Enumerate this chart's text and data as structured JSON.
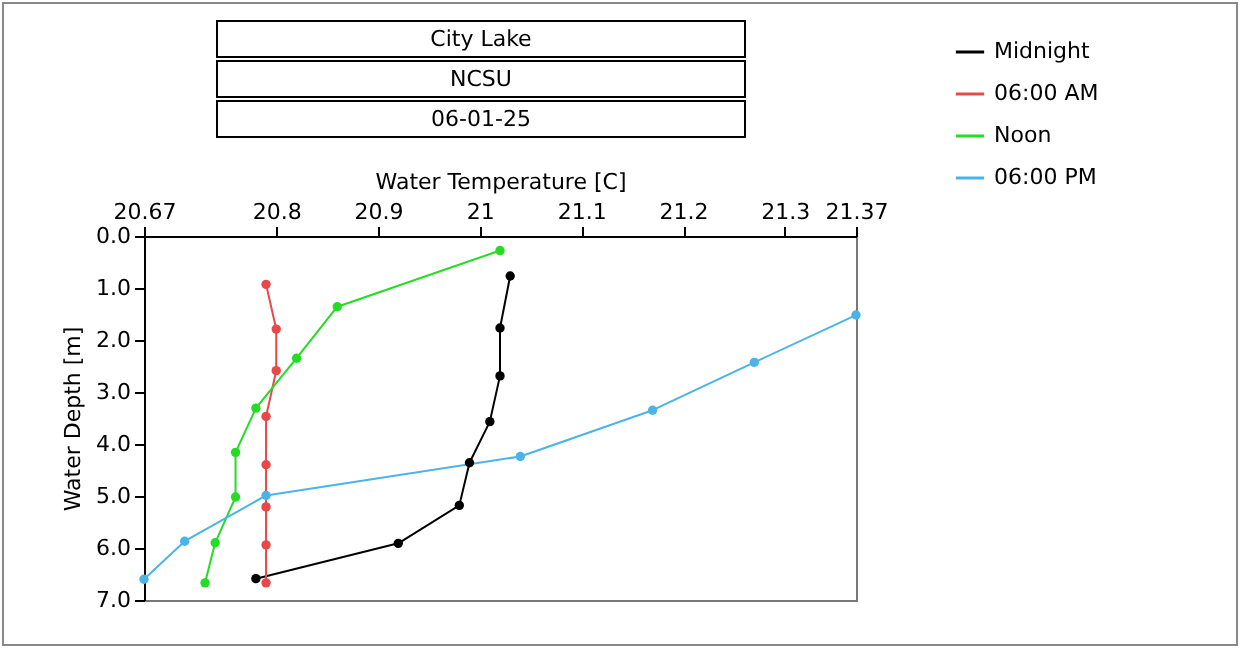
{
  "chart_data": {
    "type": "line",
    "title": "City Lake",
    "subtitle": "NCSU",
    "annotations": [
      "06-01-25"
    ],
    "xlabel": "Water Temperature [C]",
    "ylabel": "Water Depth [m]",
    "xlim": [
      20.67,
      21.37
    ],
    "xticks": [
      20.67,
      20.8,
      20.9,
      21,
      21.1,
      21.2,
      21.3,
      21.37
    ],
    "ylim": [
      7,
      0
    ],
    "yticks": [
      {
        "value": 0,
        "label": "0.0"
      },
      {
        "value": 1,
        "label": "1.0"
      },
      {
        "value": 2,
        "label": "2.0"
      },
      {
        "value": 3,
        "label": "3.0"
      },
      {
        "value": 4,
        "label": "4.0"
      },
      {
        "value": 5,
        "label": "5.0"
      },
      {
        "value": 6,
        "label": "6.0"
      },
      {
        "value": 7,
        "label": "7.0"
      }
    ],
    "grid": false,
    "legend": "top right",
    "marker": "circle",
    "line_style": "solid",
    "series": [
      {
        "name": "Midnight",
        "color": "#000000",
        "x": [
          21.03,
          21.02,
          21.02,
          21.01,
          20.99,
          20.98,
          20.92,
          20.78
        ],
        "values": [
          0.77,
          1.77,
          2.69,
          3.57,
          4.36,
          5.18,
          5.91,
          6.59
        ]
      },
      {
        "name": "06:00 AM",
        "color": "#e84848",
        "x": [
          20.79,
          20.8,
          20.8,
          20.79,
          20.79,
          20.79,
          20.79,
          20.79
        ],
        "values": [
          0.93,
          1.79,
          2.59,
          3.47,
          4.4,
          5.21,
          5.94,
          6.67
        ]
      },
      {
        "name": "Noon",
        "color": "#22dd22",
        "x": [
          21.02,
          20.86,
          20.82,
          20.78,
          20.76,
          20.76,
          20.74,
          20.73
        ],
        "values": [
          0.28,
          1.36,
          2.35,
          3.31,
          4.16,
          5.02,
          5.9,
          6.67
        ]
      },
      {
        "name": "06:00 PM",
        "color": "#4ab4e8",
        "x": [
          21.37,
          21.27,
          21.17,
          21.04,
          20.79,
          20.71,
          20.67
        ],
        "values": [
          1.52,
          2.43,
          3.35,
          4.24,
          4.99,
          5.87,
          6.6
        ]
      }
    ]
  }
}
